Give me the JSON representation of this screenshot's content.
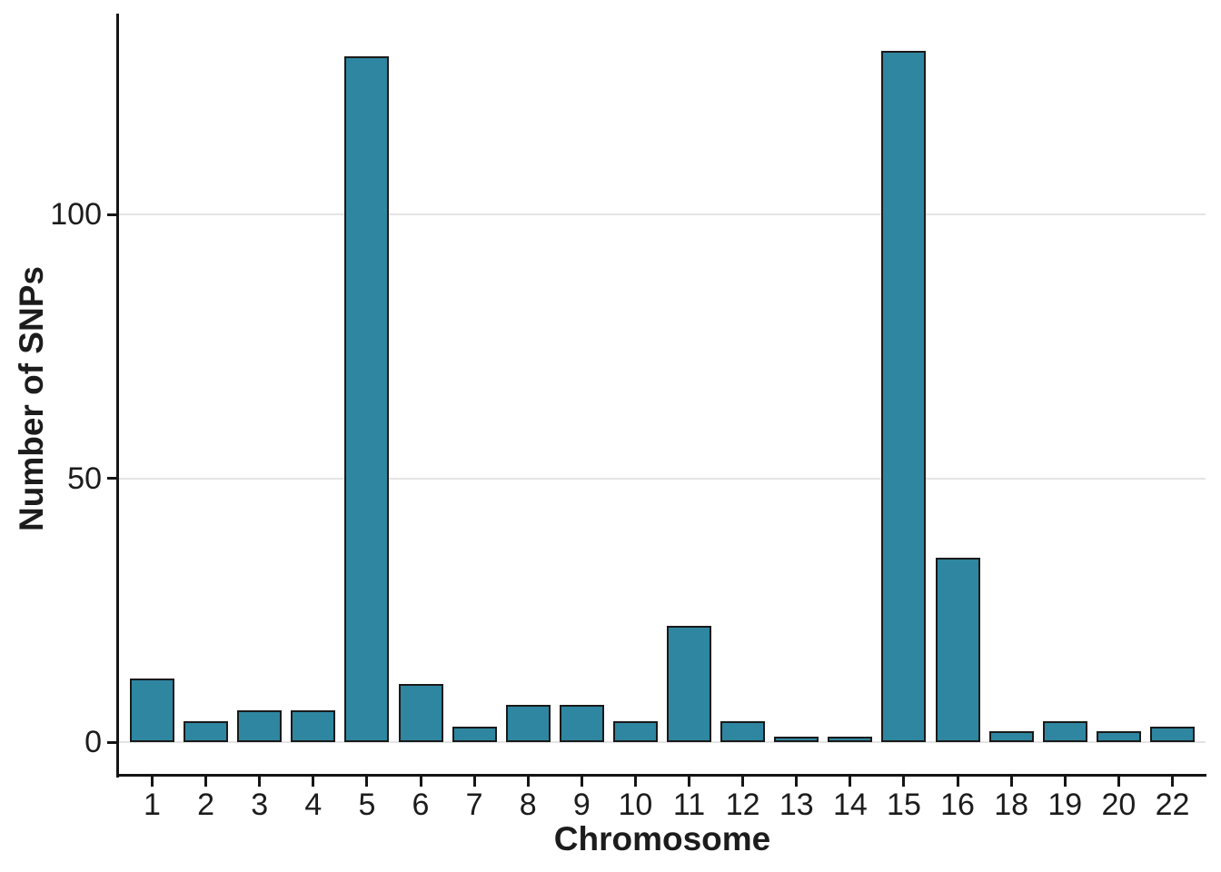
{
  "chart_data": {
    "type": "bar",
    "title": "",
    "xlabel": "Chromosome",
    "ylabel": "Number of SNPs",
    "categories": [
      "1",
      "2",
      "3",
      "4",
      "5",
      "6",
      "7",
      "8",
      "9",
      "10",
      "11",
      "12",
      "13",
      "14",
      "15",
      "16",
      "18",
      "19",
      "20",
      "22"
    ],
    "values": [
      12,
      4,
      6,
      6,
      130,
      11,
      3,
      7,
      7,
      4,
      22,
      4,
      1,
      1,
      131,
      35,
      2,
      4,
      2,
      3
    ],
    "yticks": [
      0,
      50,
      100
    ],
    "ylim": [
      0,
      137.5
    ],
    "grid": "horizontal-major-only",
    "legend": "none",
    "colors": {
      "bar_fill": "#2e86a1",
      "bar_border": "#1a1a1a",
      "gridline": "#e4e4e4",
      "axis": "#151515",
      "text": "#1c1c1c"
    }
  }
}
